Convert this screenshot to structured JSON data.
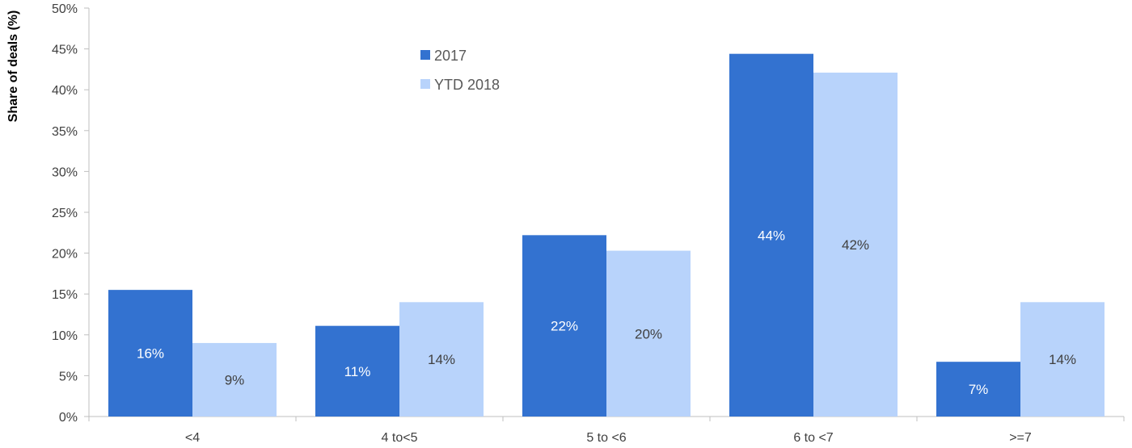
{
  "chart_data": {
    "type": "bar",
    "ylabel": "Share of deals (%)",
    "ylim": [
      0,
      50
    ],
    "yticks": [
      0,
      5,
      10,
      15,
      20,
      25,
      30,
      35,
      40,
      45,
      50
    ],
    "ytick_labels": [
      "0%",
      "5%",
      "10%",
      "15%",
      "20%",
      "25%",
      "30%",
      "35%",
      "40%",
      "45%",
      "50%"
    ],
    "categories": [
      "<4",
      "4 to<5",
      "5 to <6",
      "6 to <7",
      ">=7"
    ],
    "series": [
      {
        "name": "2017",
        "color": "#3372D0",
        "label_color": "#ffffff",
        "values": [
          15.5,
          11.1,
          22.2,
          44.4,
          6.7
        ],
        "labels": [
          "16%",
          "11%",
          "22%",
          "44%",
          "7%"
        ]
      },
      {
        "name": "YTD 2018",
        "color": "#B8D3FB",
        "label_color": "#404040",
        "values": [
          9.0,
          14.0,
          20.3,
          42.1,
          14.0
        ],
        "labels": [
          "9%",
          "14%",
          "20%",
          "42%",
          "14%"
        ]
      }
    ],
    "legend_position": "top-center",
    "grid": false
  }
}
